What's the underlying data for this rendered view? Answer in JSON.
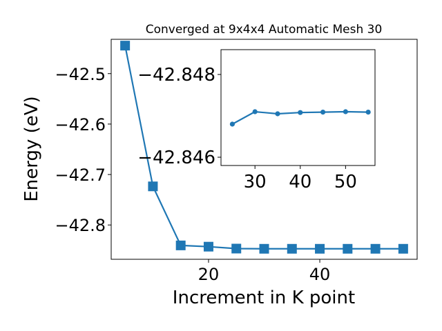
{
  "chart_data": [
    {
      "type": "line",
      "title": "Converged at 9x4x4 Automatic Mesh 30",
      "xlabel": "Increment in K point",
      "ylabel": "Energy (eV)",
      "xlim": [
        2.5,
        57.5
      ],
      "ylim": [
        -42.868,
        -42.432
      ],
      "xticks": [
        20,
        40
      ],
      "xtick_labels": [
        "20",
        "40"
      ],
      "yticks": [
        -42.5,
        -42.6,
        -42.7,
        -42.8
      ],
      "ytick_labels": [
        "−42.5",
        "−42.6",
        "−42.7",
        "−42.8"
      ],
      "marker": "square",
      "color": "#1f77b4",
      "grid": false,
      "series": [
        {
          "x": [
            5,
            10,
            15,
            20,
            25,
            30,
            35,
            40,
            45,
            50,
            55
          ],
          "y": [
            -42.4445,
            -42.7235,
            -42.8405,
            -42.843,
            -42.8468,
            -42.8472,
            -42.8472,
            -42.8472,
            -42.8472,
            -42.8472,
            -42.8472
          ]
        }
      ]
    },
    {
      "type": "line",
      "xlim": [
        22.5,
        56.5
      ],
      "ylim": [
        -42.8458,
        -42.8486
      ],
      "xticks": [
        30,
        40,
        50
      ],
      "xtick_labels": [
        "30",
        "40",
        "50"
      ],
      "yticks": [
        -42.848,
        -42.846
      ],
      "ytick_labels": [
        "−42.848",
        "−42.846"
      ],
      "marker": "circle",
      "color": "#1f77b4",
      "grid": false,
      "series": [
        {
          "x": [
            25,
            30,
            35,
            40,
            45,
            50,
            55
          ],
          "y": [
            -42.8468,
            -42.8471,
            -42.84705,
            -42.84708,
            -42.84709,
            -42.8471,
            -42.84709
          ]
        }
      ]
    }
  ]
}
